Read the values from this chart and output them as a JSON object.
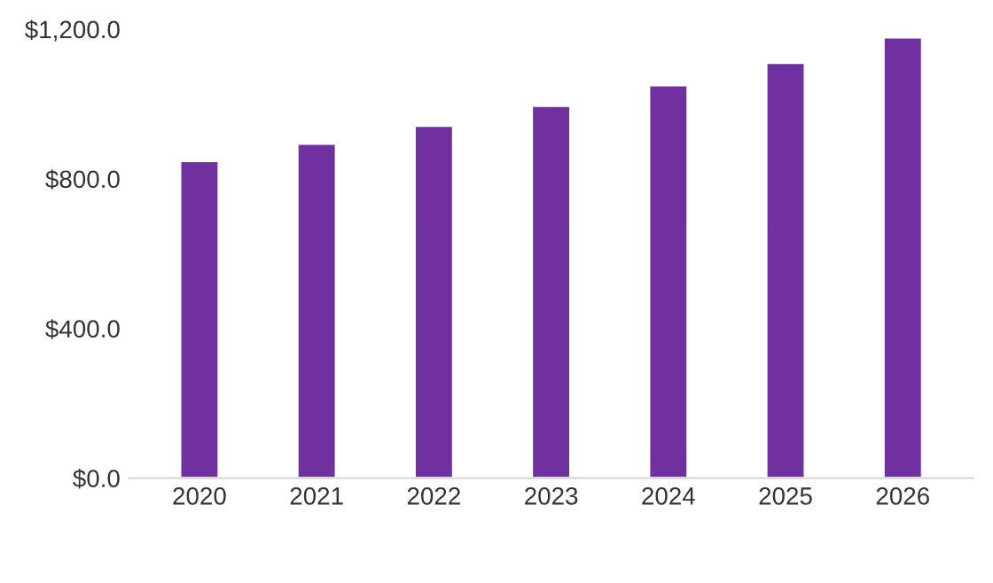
{
  "chart_data": {
    "type": "bar",
    "categories": [
      "2020",
      "2021",
      "2022",
      "2023",
      "2024",
      "2025",
      "2026"
    ],
    "values": [
      848,
      894,
      942,
      995,
      1050,
      1110,
      1178
    ],
    "color": "#7030a0",
    "ylim": [
      0,
      1200
    ],
    "yticks": [
      {
        "value": 0,
        "label": "$0.0"
      },
      {
        "value": 400,
        "label": "$400.0"
      },
      {
        "value": 800,
        "label": "$800.0"
      },
      {
        "value": 1200,
        "label": "$1,200.0"
      }
    ],
    "grid": false
  }
}
